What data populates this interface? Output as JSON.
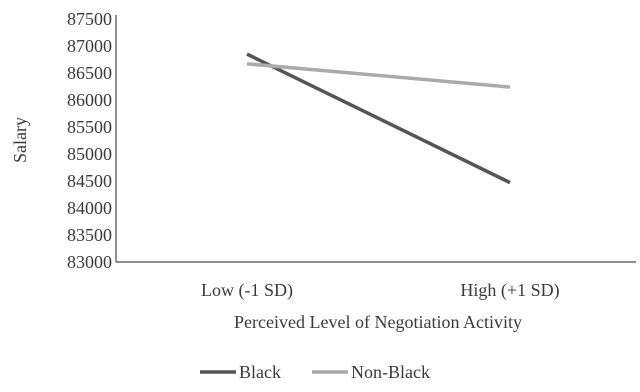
{
  "chart_data": {
    "type": "line",
    "categories": [
      "Low (-1 SD)",
      "High (+1 SD)"
    ],
    "series": [
      {
        "name": "Black",
        "values": [
          86850,
          84470
        ],
        "color": "#555555"
      },
      {
        "name": "Non-Black",
        "values": [
          86670,
          86240
        ],
        "color": "#aaaaaa"
      }
    ],
    "title": "",
    "xlabel": "Perceived Level of Negotiation Activity",
    "ylabel": "Salary",
    "ylim": [
      83000,
      87500
    ],
    "yticks": [
      83000,
      83500,
      84000,
      84500,
      85000,
      85500,
      86000,
      86500,
      87000,
      87500
    ],
    "grid": false,
    "legend_position": "bottom-center"
  }
}
